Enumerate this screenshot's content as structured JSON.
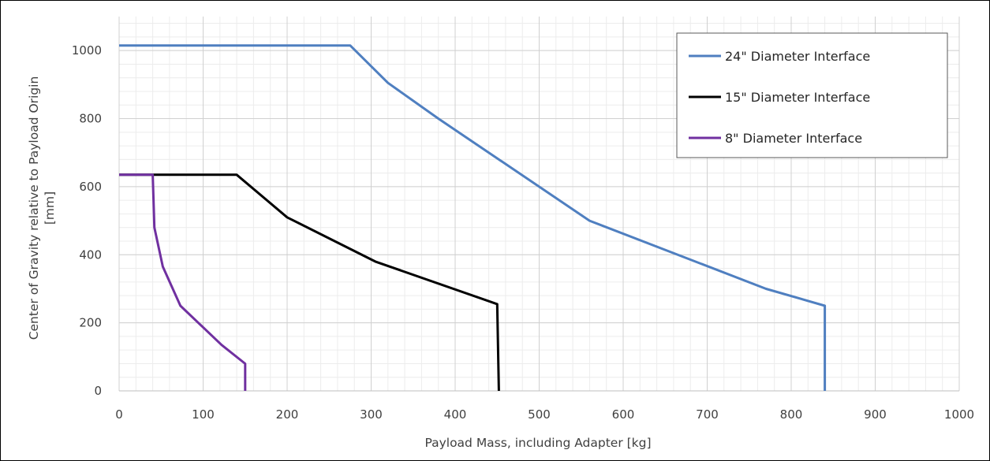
{
  "chart_data": {
    "type": "line",
    "title": "",
    "xlabel": "Payload Mass, including Adapter [kg]",
    "ylabel_lines": [
      "Center of Gravity relative to Payload Origin",
      "[mm]"
    ],
    "xlim": [
      0,
      1000
    ],
    "ylim": [
      0,
      1100
    ],
    "x_ticks": [
      0,
      100,
      200,
      300,
      400,
      500,
      600,
      700,
      800,
      900,
      1000
    ],
    "y_ticks": [
      0,
      200,
      400,
      600,
      800,
      1000
    ],
    "x_tick_labels": [
      "0",
      "100",
      "200",
      "300",
      "400",
      "500",
      "600",
      "700",
      "800",
      "900",
      "1000"
    ],
    "y_tick_labels": [
      "0",
      "200",
      "400",
      "600",
      "800",
      "1000"
    ],
    "minor_x_step": 20,
    "minor_y_step": 40,
    "grid": true,
    "legend_position": "top-right",
    "series": [
      {
        "name": "24\" Diameter Interface",
        "color": "#4f7fc0",
        "points": [
          [
            0,
            1015
          ],
          [
            275,
            1015
          ],
          [
            320,
            905
          ],
          [
            380,
            800
          ],
          [
            560,
            500
          ],
          [
            770,
            300
          ],
          [
            840,
            250
          ],
          [
            840,
            0
          ]
        ]
      },
      {
        "name": "15\" Diameter Interface",
        "color": "#000000",
        "points": [
          [
            0,
            635
          ],
          [
            140,
            635
          ],
          [
            200,
            510
          ],
          [
            305,
            380
          ],
          [
            450,
            255
          ],
          [
            452,
            0
          ]
        ]
      },
      {
        "name": "8\" Diameter Interface",
        "color": "#7030a0",
        "points": [
          [
            0,
            635
          ],
          [
            40,
            635
          ],
          [
            42,
            480
          ],
          [
            52,
            365
          ],
          [
            73,
            250
          ],
          [
            122,
            135
          ],
          [
            150,
            80
          ],
          [
            150,
            0
          ]
        ]
      }
    ]
  }
}
